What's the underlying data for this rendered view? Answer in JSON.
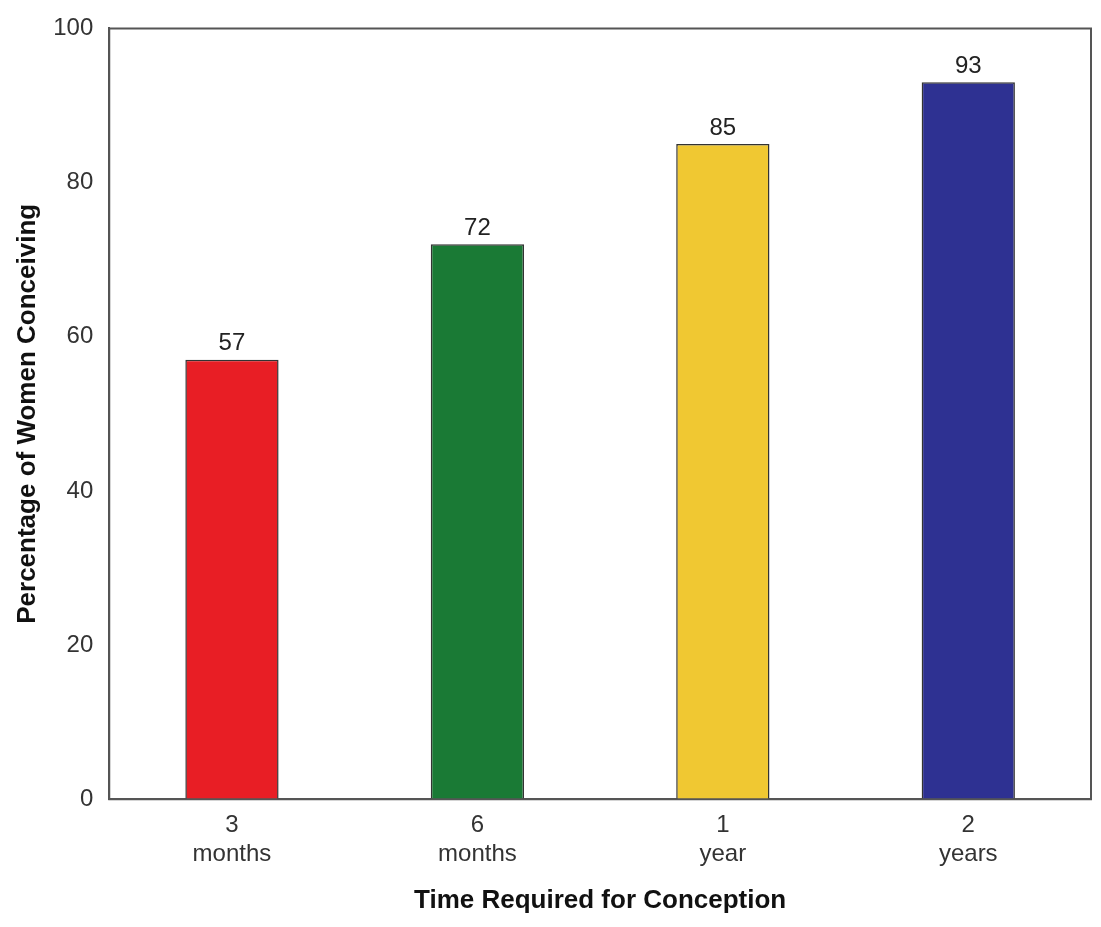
{
  "chart_data": {
    "type": "bar",
    "xlabel": "Time Required for Conception",
    "ylabel": "Percentage of Women Conceiving",
    "categories": [
      "3 months",
      "6 months",
      "1 year",
      "2 years"
    ],
    "values": [
      57,
      72,
      85,
      93
    ],
    "colors": [
      "#e81e25",
      "#1a7a35",
      "#f0c832",
      "#2e3192"
    ],
    "ylim": [
      0,
      100
    ],
    "yticks": [
      0,
      20,
      40,
      60,
      80,
      100
    ],
    "grid": false,
    "legend": false,
    "data_labels": true
  }
}
